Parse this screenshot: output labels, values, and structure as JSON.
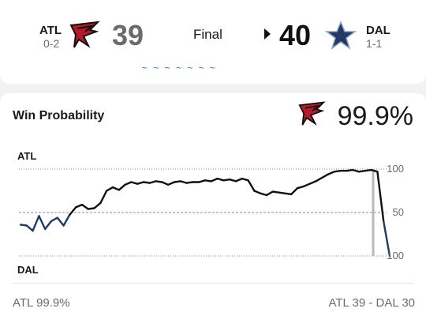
{
  "scoreboard": {
    "away": {
      "abbr": "ATL",
      "record": "0-2",
      "score": "39",
      "logo": "falcons-logo"
    },
    "home": {
      "abbr": "DAL",
      "record": "1-1",
      "score": "40",
      "logo": "cowboys-star-logo"
    },
    "status": "Final",
    "winner_indicator": "play-arrow-icon"
  },
  "win_probability": {
    "title": "Win Probability",
    "leader_logo": "falcons-logo",
    "leader_pct": "99.9%",
    "top_team_label": "ATL",
    "bottom_team_label": "DAL",
    "footer_left": "ATL 99.9%",
    "footer_right": "ATL 39  - DAL 30"
  },
  "colors": {
    "atl_line": "#111111",
    "dal_line": "#1f3b64",
    "current_marker": "#b9b9b9",
    "gridline": "#8c8c8c",
    "falcons_red": "#b31b28",
    "cowboys_navy": "#1f3b64"
  },
  "chart_data": {
    "type": "line",
    "y_tick_labels": [
      "100",
      "50",
      "100"
    ],
    "ylim": [
      -100,
      100
    ],
    "grid": true,
    "x": [
      0,
      1,
      2,
      3,
      4,
      5,
      6,
      7,
      8,
      9,
      10,
      11,
      12,
      13,
      14,
      15,
      16,
      17,
      18,
      19,
      20,
      21,
      22,
      23,
      24,
      25,
      26,
      27,
      28,
      29,
      30,
      31,
      32,
      33,
      34,
      35,
      36,
      37,
      38,
      39,
      40,
      41,
      42,
      43,
      44,
      45,
      46,
      47,
      48,
      49,
      50,
      51,
      52,
      53,
      54,
      55,
      56,
      57,
      58,
      59,
      60
    ],
    "series": [
      {
        "values": [
          -28,
          -30,
          -42,
          -8,
          -38,
          -20,
          -12,
          -30,
          -5,
          12,
          18,
          8,
          10,
          22,
          50,
          58,
          52,
          64,
          70,
          66,
          70,
          68,
          72,
          70,
          64,
          70,
          72,
          68,
          70,
          70,
          74,
          72,
          78,
          74,
          76,
          72,
          78,
          74,
          50,
          44,
          40,
          48,
          46,
          44,
          42,
          56,
          60,
          66,
          72,
          80,
          88,
          94,
          96,
          96,
          98,
          94,
          96,
          98,
          94,
          -20,
          -99.9
        ]
      }
    ]
  }
}
